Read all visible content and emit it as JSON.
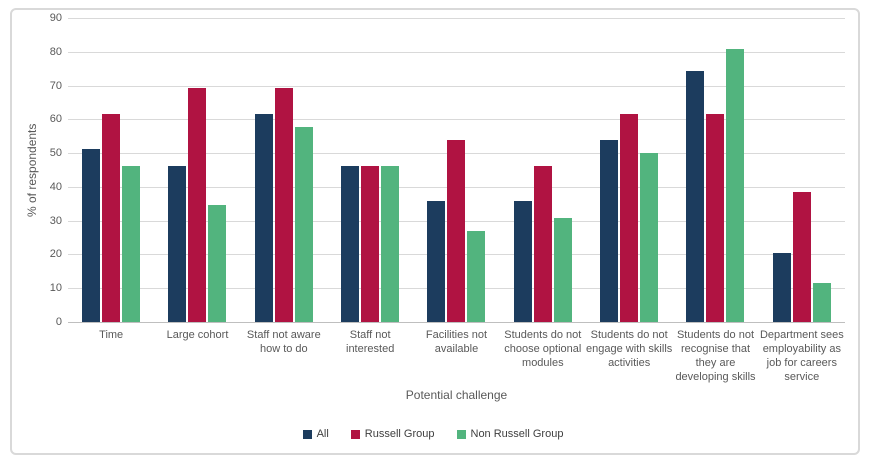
{
  "chart_data": {
    "type": "bar",
    "title": "",
    "xlabel": "Potential challenge",
    "ylabel": "% of respondents",
    "ylim": [
      0,
      90
    ],
    "yticks": [
      0,
      10,
      20,
      30,
      40,
      50,
      60,
      70,
      80,
      90
    ],
    "grid": true,
    "legend_position": "bottom-center",
    "categories": [
      "Time",
      "Large cohort",
      "Staff not aware how to do",
      "Staff not interested",
      "Facilities not available",
      "Students do not choose optional modules",
      "Students do not engage with skills activities",
      "Students do not recognise that they are developing skills",
      "Department sees employability as job for careers service"
    ],
    "series": [
      {
        "name": "All",
        "color": "#1C3C5E",
        "values": [
          51.3,
          46.2,
          61.5,
          46.2,
          35.9,
          35.9,
          53.8,
          74.4,
          20.5
        ]
      },
      {
        "name": "Russell Group",
        "color": "#B01342",
        "values": [
          61.5,
          69.2,
          69.2,
          46.2,
          53.8,
          46.2,
          61.5,
          61.5,
          38.5
        ]
      },
      {
        "name": "Non Russell Group",
        "color": "#52B47E",
        "values": [
          46.2,
          34.6,
          57.7,
          46.2,
          26.9,
          30.8,
          50.0,
          80.8,
          11.5
        ]
      }
    ],
    "colors": {
      "gridline": "#d9d9d9",
      "axis_line": "#bfbfbf",
      "axis_text": "#595959",
      "legend_text": "#404040",
      "figure_border": "#d9d9d9"
    }
  }
}
